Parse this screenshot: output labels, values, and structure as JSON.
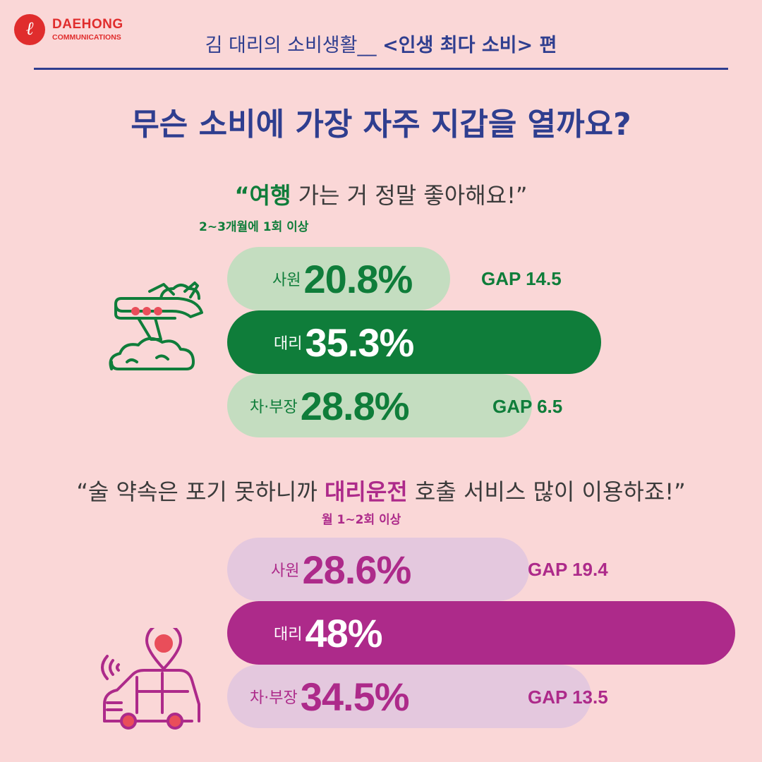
{
  "logo": {
    "mark": "ℓ",
    "name": "DAEHONG",
    "sub": "COMMUNICATIONS"
  },
  "header": {
    "series_part1": "김 대리의 소비생활__ ",
    "series_part2": "<인생 최다 소비> 편"
  },
  "headline": "무슨 소비에 가장 자주 지갑을 열까요?",
  "colors": {
    "background": "#fad7d7",
    "navy": "#2f3e8f",
    "travel_dark": "#0f7d3a",
    "travel_light": "#c4ddc0",
    "driver_dark": "#ad2a8a",
    "driver_light": "#e4c8de"
  },
  "sections": [
    {
      "quote_open": "“",
      "quote_highlight": "여행",
      "quote_rest": " 가는 거 정말 좋아해요!”",
      "frequency": "2~3개월에 1회 이상",
      "icon": "airplane-icon"
    },
    {
      "quote_before": "“술 약속은 포기 못하니까 ",
      "quote_highlight": "대리운전",
      "quote_after": " 호출 서비스 많이 이용하죠!”",
      "frequency": "월 1~2회 이상",
      "icon": "car-location-icon"
    }
  ],
  "chart_data": [
    {
      "type": "bar",
      "categories": [
        "사원",
        "대리",
        "차·부장"
      ],
      "values": [
        20.8,
        35.3,
        28.8
      ],
      "value_labels": [
        "20.8%",
        "35.3%",
        "28.8%"
      ],
      "unit": "%",
      "highlight": "대리",
      "gaps": [
        {
          "label": "GAP 14.5",
          "value": 14.5
        },
        {
          "label": "GAP 6.5",
          "value": 6.5
        }
      ]
    },
    {
      "type": "bar",
      "categories": [
        "사원",
        "대리",
        "차·부장"
      ],
      "values": [
        28.6,
        48,
        34.5
      ],
      "value_labels": [
        "28.6%",
        "48%",
        "34.5%"
      ],
      "unit": "%",
      "highlight": "대리",
      "gaps": [
        {
          "label": "GAP 19.4",
          "value": 19.4
        },
        {
          "label": "GAP 13.5",
          "value": 13.5
        }
      ]
    }
  ]
}
